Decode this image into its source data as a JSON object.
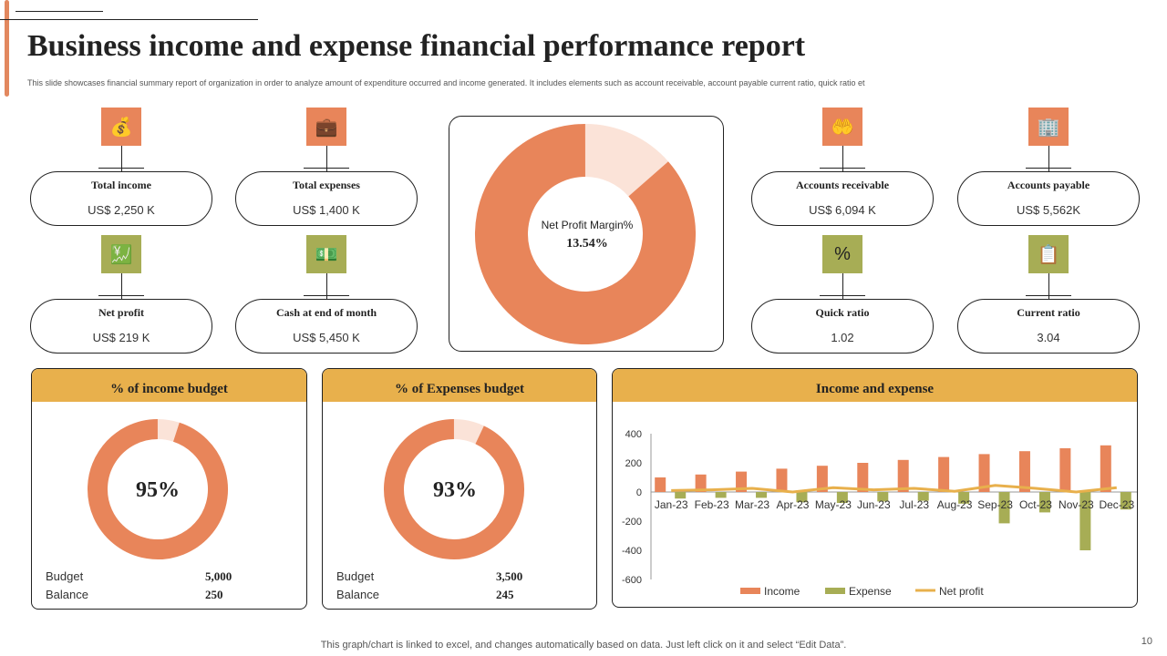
{
  "title": "Business income and expense financial performance report",
  "subtitle": "This slide showcases financial summary report of organization in order to analyze amount of expenditure occurred and income generated. It includes elements such as account receivable, account payable current ratio, quick ratio et",
  "kpis": [
    {
      "label": "Total income",
      "value": "US$ 2,250 K",
      "icon": "money-bag-icon",
      "glyph": "💰"
    },
    {
      "label": "Total expenses",
      "value": "US$ 1,400 K",
      "icon": "briefcase-icon",
      "glyph": "💼"
    },
    {
      "label": "Accounts receivable",
      "value": "US$ 6,094 K",
      "icon": "hand-money-icon",
      "glyph": "🤲"
    },
    {
      "label": "Accounts payable",
      "value": "US$ 5,562K",
      "icon": "building-icon",
      "glyph": "🏢"
    },
    {
      "label": "Net profit",
      "value": "US$ 219 K",
      "icon": "coins-growth-icon",
      "glyph": "💹"
    },
    {
      "label": "Cash at end of month",
      "value": "US$ 5,450 K",
      "icon": "cash-icon",
      "glyph": "💵"
    },
    {
      "label": "Quick ratio",
      "value": "1.02",
      "icon": "percent-icon",
      "glyph": "%"
    },
    {
      "label": "Current ratio",
      "value": "3.04",
      "icon": "clipboard-chart-icon",
      "glyph": "📋"
    }
  ],
  "net_profit_margin": {
    "label": "Net Profit Margin%",
    "value": "13.54%",
    "fraction": 0.1354
  },
  "income_budget": {
    "title": "% of income budget",
    "percent": "95%",
    "fraction": 0.95,
    "budget_label": "Budget",
    "budget": "5,000",
    "balance_label": "Balance",
    "balance": "250"
  },
  "expense_budget": {
    "title": "% of Expenses budget",
    "percent": "93%",
    "fraction": 0.93,
    "budget_label": "Budget",
    "budget": "3,500",
    "balance_label": "Balance",
    "balance": "245"
  },
  "colors": {
    "orange": "#e8855a",
    "light": "#fbe3d8",
    "green": "#a7ad55",
    "gold": "#e8b04c"
  },
  "chart_data": {
    "type": "bar",
    "title": "Income and expense",
    "categories": [
      "Jan-23",
      "Feb-23",
      "Mar-23",
      "Apr-23",
      "May-23",
      "Jun-23",
      "Jul-23",
      "Aug-23",
      "Sep-23",
      "Oct-23",
      "Nov-23",
      "Dec-23"
    ],
    "series": [
      {
        "name": "Income",
        "type": "bar",
        "color": "#e8855a",
        "values": [
          100,
          120,
          140,
          160,
          180,
          200,
          220,
          240,
          260,
          280,
          300,
          320
        ]
      },
      {
        "name": "Expense",
        "type": "bar",
        "color": "#a7ad55",
        "values": [
          -45,
          -40,
          -40,
          -70,
          -75,
          -65,
          -60,
          -80,
          -215,
          -140,
          -400,
          -120
        ]
      },
      {
        "name": "Net profit",
        "type": "line",
        "color": "#e8b04c",
        "values": [
          10,
          15,
          25,
          0,
          30,
          15,
          25,
          5,
          45,
          25,
          0,
          30
        ]
      }
    ],
    "yticks": [
      "400",
      "200",
      "0",
      "-200",
      "-400",
      "-600"
    ],
    "ylim": [
      -600,
      400
    ],
    "legend": "bottom"
  },
  "footer": "This graph/chart is linked to excel, and changes automatically based on data. Just left click on it and select “Edit Data”.",
  "page_number": "10"
}
